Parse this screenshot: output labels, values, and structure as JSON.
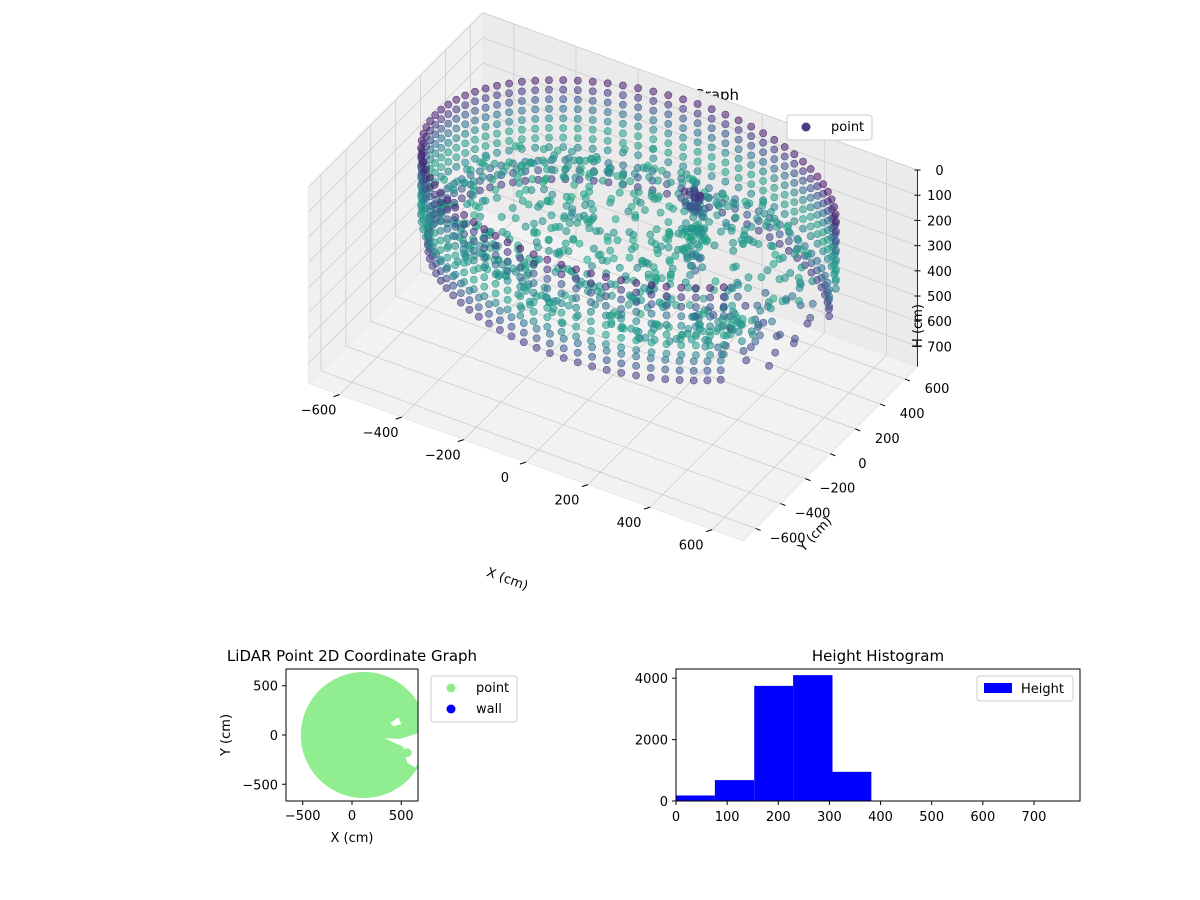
{
  "colors": {
    "point3d": "#433e85",
    "point2d": "#90ee90",
    "wall": "#0000ff",
    "hist": "#0000ff",
    "viridis_low": "#440154",
    "viridis_mid": "#3b528b",
    "viridis_teal": "#21918c",
    "pane": "#f2f2f2"
  },
  "chart_data": [
    {
      "type": "scatter",
      "projection": "3d",
      "title": "LiDAR Point 3D Coordinate Graph",
      "xlabel": "X (cm)",
      "ylabel": "Y (cm)",
      "zlabel": "H (cm)",
      "xlim": [
        -700,
        700
      ],
      "ylim": [
        -700,
        700
      ],
      "zlim": [
        780,
        0
      ],
      "zaxis_inverted": true,
      "xticks": [
        "−600",
        "−400",
        "−200",
        "0",
        "200",
        "400",
        "600"
      ],
      "yticks": [
        "−600",
        "−400",
        "−200",
        "0",
        "200",
        "400",
        "600"
      ],
      "zticks": [
        "0",
        "100",
        "200",
        "300",
        "400",
        "500",
        "600",
        "700"
      ],
      "grid": true,
      "legend": {
        "position": "top-right",
        "entries": [
          {
            "label": "point"
          }
        ]
      },
      "series": [
        {
          "name": "point",
          "shape": "approximately circular room",
          "center": [
            50,
            0
          ],
          "radius": 620,
          "wall_height_range": [
            0,
            380
          ],
          "floor_height": 230,
          "opening_angle_deg": [
            -40,
            20
          ]
        }
      ]
    },
    {
      "type": "scatter",
      "title": "LiDAR Point 2D Coordinate Graph",
      "xlabel": "X (cm)",
      "ylabel": "Y (cm)",
      "xlim": [
        -670,
        670
      ],
      "ylim": [
        -670,
        670
      ],
      "xticks": [
        "−500",
        "0",
        "500"
      ],
      "yticks": [
        "−500",
        "0",
        "500"
      ],
      "legend": {
        "position": "outside-right",
        "entries": [
          {
            "label": "point"
          },
          {
            "label": "wall"
          }
        ]
      },
      "series": [
        {
          "name": "point",
          "region": "filled disk",
          "center": [
            120,
            0
          ],
          "radius": 640
        },
        {
          "name": "wall",
          "points": []
        }
      ]
    },
    {
      "type": "bar",
      "subtype": "histogram",
      "title": "Height Histogram",
      "xlim": [
        0,
        790
      ],
      "ylim": [
        0,
        4300
      ],
      "xticks": [
        "0",
        "100",
        "200",
        "300",
        "400",
        "500",
        "600",
        "700"
      ],
      "yticks": [
        "0",
        "2000",
        "4000"
      ],
      "legend": {
        "position": "top-right",
        "entries": [
          {
            "label": "Height"
          }
        ]
      },
      "bin_edges": [
        0,
        76,
        153,
        229,
        306,
        382,
        459,
        535,
        612,
        688,
        765
      ],
      "values": [
        180,
        680,
        3750,
        4100,
        950,
        0,
        0,
        0,
        0,
        0
      ],
      "series": [
        {
          "name": "Height"
        }
      ]
    }
  ]
}
